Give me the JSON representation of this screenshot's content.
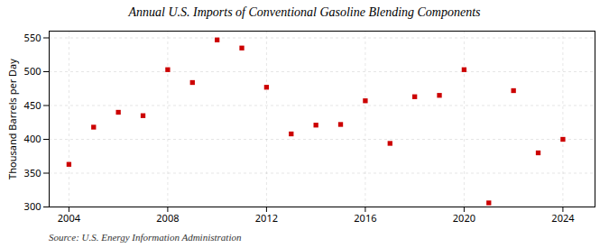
{
  "chart_data": {
    "type": "scatter",
    "title": "Annual U.S. Imports of Conventional Gasoline Blending Components",
    "ylabel": "Thousand Barrels per Day",
    "source": "Source: U.S. Energy Information Administration",
    "x": [
      2004,
      2005,
      2006,
      2007,
      2008,
      2009,
      2010,
      2011,
      2012,
      2013,
      2014,
      2015,
      2016,
      2017,
      2018,
      2019,
      2020,
      2021,
      2022,
      2023,
      2024
    ],
    "values": [
      363,
      418,
      440,
      435,
      503,
      484,
      547,
      535,
      477,
      408,
      421,
      422,
      457,
      394,
      463,
      465,
      503,
      306,
      472,
      380,
      400
    ],
    "color": "#cc0000",
    "marker": "square",
    "xlim": [
      2003.2,
      2025.3
    ],
    "xticks": [
      2004,
      2008,
      2012,
      2016,
      2020,
      2024
    ],
    "ylim": [
      300,
      560
    ],
    "yticks": [
      300,
      350,
      400,
      450,
      500,
      550
    ],
    "grid": true
  }
}
